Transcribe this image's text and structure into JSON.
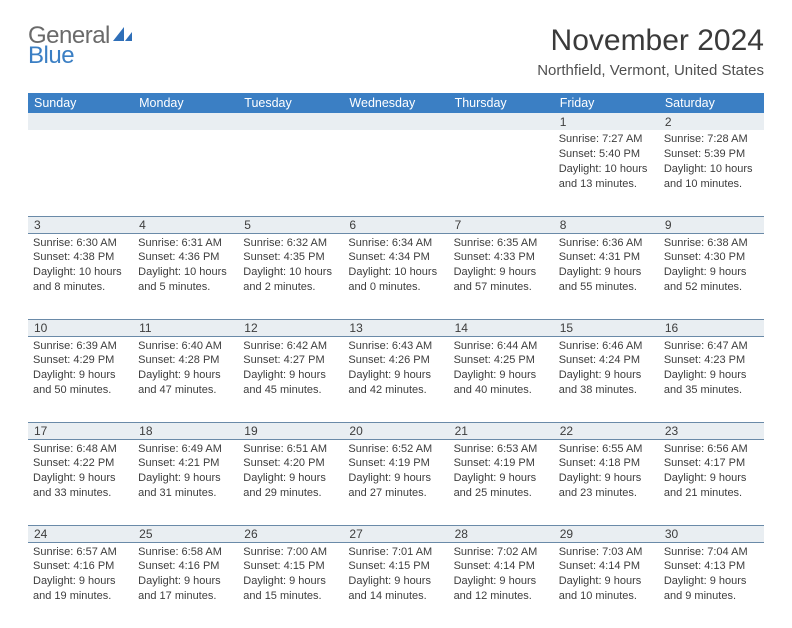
{
  "logo": {
    "text1": "General",
    "text2": "Blue",
    "icon_color": "#2f6fb8"
  },
  "title": "November 2024",
  "location": "Northfield, Vermont, United States",
  "header_bg": "#3b7fc4",
  "days": [
    "Sunday",
    "Monday",
    "Tuesday",
    "Wednesday",
    "Thursday",
    "Friday",
    "Saturday"
  ],
  "weeks": [
    [
      null,
      null,
      null,
      null,
      null,
      {
        "n": "1",
        "sr": "Sunrise: 7:27 AM",
        "ss": "Sunset: 5:40 PM",
        "dl": "Daylight: 10 hours and 13 minutes."
      },
      {
        "n": "2",
        "sr": "Sunrise: 7:28 AM",
        "ss": "Sunset: 5:39 PM",
        "dl": "Daylight: 10 hours and 10 minutes."
      }
    ],
    [
      {
        "n": "3",
        "sr": "Sunrise: 6:30 AM",
        "ss": "Sunset: 4:38 PM",
        "dl": "Daylight: 10 hours and 8 minutes."
      },
      {
        "n": "4",
        "sr": "Sunrise: 6:31 AM",
        "ss": "Sunset: 4:36 PM",
        "dl": "Daylight: 10 hours and 5 minutes."
      },
      {
        "n": "5",
        "sr": "Sunrise: 6:32 AM",
        "ss": "Sunset: 4:35 PM",
        "dl": "Daylight: 10 hours and 2 minutes."
      },
      {
        "n": "6",
        "sr": "Sunrise: 6:34 AM",
        "ss": "Sunset: 4:34 PM",
        "dl": "Daylight: 10 hours and 0 minutes."
      },
      {
        "n": "7",
        "sr": "Sunrise: 6:35 AM",
        "ss": "Sunset: 4:33 PM",
        "dl": "Daylight: 9 hours and 57 minutes."
      },
      {
        "n": "8",
        "sr": "Sunrise: 6:36 AM",
        "ss": "Sunset: 4:31 PM",
        "dl": "Daylight: 9 hours and 55 minutes."
      },
      {
        "n": "9",
        "sr": "Sunrise: 6:38 AM",
        "ss": "Sunset: 4:30 PM",
        "dl": "Daylight: 9 hours and 52 minutes."
      }
    ],
    [
      {
        "n": "10",
        "sr": "Sunrise: 6:39 AM",
        "ss": "Sunset: 4:29 PM",
        "dl": "Daylight: 9 hours and 50 minutes."
      },
      {
        "n": "11",
        "sr": "Sunrise: 6:40 AM",
        "ss": "Sunset: 4:28 PM",
        "dl": "Daylight: 9 hours and 47 minutes."
      },
      {
        "n": "12",
        "sr": "Sunrise: 6:42 AM",
        "ss": "Sunset: 4:27 PM",
        "dl": "Daylight: 9 hours and 45 minutes."
      },
      {
        "n": "13",
        "sr": "Sunrise: 6:43 AM",
        "ss": "Sunset: 4:26 PM",
        "dl": "Daylight: 9 hours and 42 minutes."
      },
      {
        "n": "14",
        "sr": "Sunrise: 6:44 AM",
        "ss": "Sunset: 4:25 PM",
        "dl": "Daylight: 9 hours and 40 minutes."
      },
      {
        "n": "15",
        "sr": "Sunrise: 6:46 AM",
        "ss": "Sunset: 4:24 PM",
        "dl": "Daylight: 9 hours and 38 minutes."
      },
      {
        "n": "16",
        "sr": "Sunrise: 6:47 AM",
        "ss": "Sunset: 4:23 PM",
        "dl": "Daylight: 9 hours and 35 minutes."
      }
    ],
    [
      {
        "n": "17",
        "sr": "Sunrise: 6:48 AM",
        "ss": "Sunset: 4:22 PM",
        "dl": "Daylight: 9 hours and 33 minutes."
      },
      {
        "n": "18",
        "sr": "Sunrise: 6:49 AM",
        "ss": "Sunset: 4:21 PM",
        "dl": "Daylight: 9 hours and 31 minutes."
      },
      {
        "n": "19",
        "sr": "Sunrise: 6:51 AM",
        "ss": "Sunset: 4:20 PM",
        "dl": "Daylight: 9 hours and 29 minutes."
      },
      {
        "n": "20",
        "sr": "Sunrise: 6:52 AM",
        "ss": "Sunset: 4:19 PM",
        "dl": "Daylight: 9 hours and 27 minutes."
      },
      {
        "n": "21",
        "sr": "Sunrise: 6:53 AM",
        "ss": "Sunset: 4:19 PM",
        "dl": "Daylight: 9 hours and 25 minutes."
      },
      {
        "n": "22",
        "sr": "Sunrise: 6:55 AM",
        "ss": "Sunset: 4:18 PM",
        "dl": "Daylight: 9 hours and 23 minutes."
      },
      {
        "n": "23",
        "sr": "Sunrise: 6:56 AM",
        "ss": "Sunset: 4:17 PM",
        "dl": "Daylight: 9 hours and 21 minutes."
      }
    ],
    [
      {
        "n": "24",
        "sr": "Sunrise: 6:57 AM",
        "ss": "Sunset: 4:16 PM",
        "dl": "Daylight: 9 hours and 19 minutes."
      },
      {
        "n": "25",
        "sr": "Sunrise: 6:58 AM",
        "ss": "Sunset: 4:16 PM",
        "dl": "Daylight: 9 hours and 17 minutes."
      },
      {
        "n": "26",
        "sr": "Sunrise: 7:00 AM",
        "ss": "Sunset: 4:15 PM",
        "dl": "Daylight: 9 hours and 15 minutes."
      },
      {
        "n": "27",
        "sr": "Sunrise: 7:01 AM",
        "ss": "Sunset: 4:15 PM",
        "dl": "Daylight: 9 hours and 14 minutes."
      },
      {
        "n": "28",
        "sr": "Sunrise: 7:02 AM",
        "ss": "Sunset: 4:14 PM",
        "dl": "Daylight: 9 hours and 12 minutes."
      },
      {
        "n": "29",
        "sr": "Sunrise: 7:03 AM",
        "ss": "Sunset: 4:14 PM",
        "dl": "Daylight: 9 hours and 10 minutes."
      },
      {
        "n": "30",
        "sr": "Sunrise: 7:04 AM",
        "ss": "Sunset: 4:13 PM",
        "dl": "Daylight: 9 hours and 9 minutes."
      }
    ]
  ]
}
